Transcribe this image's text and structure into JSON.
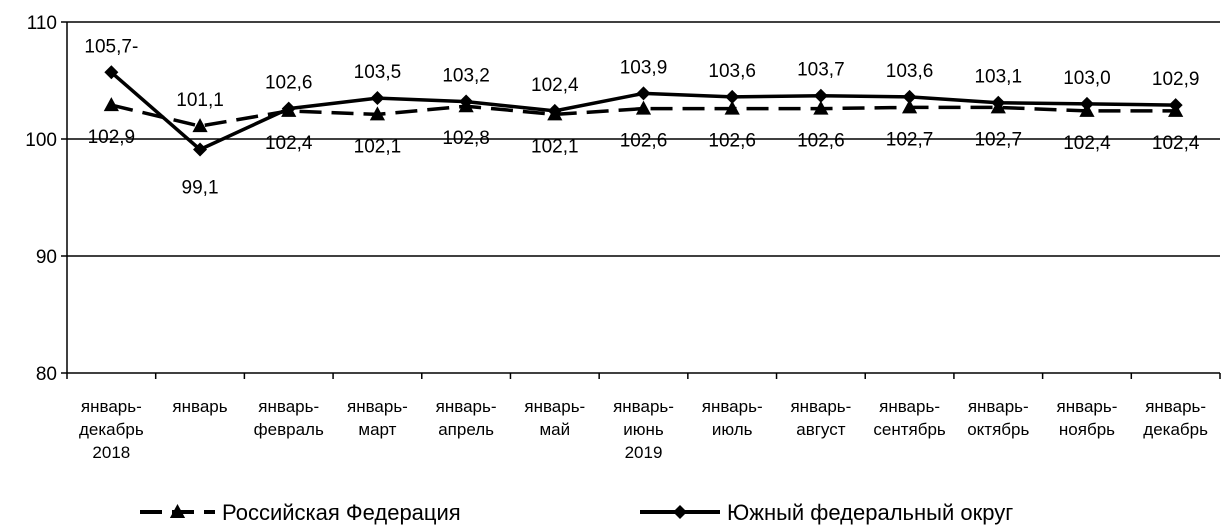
{
  "chart_data": {
    "type": "line",
    "title": "",
    "xlabel": "",
    "ylabel": "",
    "ylim": [
      80,
      110
    ],
    "yticks": [
      "80",
      "90",
      "100",
      "110"
    ],
    "grid": "horizontal",
    "legend_position": "bottom",
    "categories": [
      [
        "январь-",
        "декабрь",
        "2018"
      ],
      [
        "январь"
      ],
      [
        "январь-",
        "февраль"
      ],
      [
        "январь-",
        "март"
      ],
      [
        "январь-",
        "апрель"
      ],
      [
        "январь-",
        "май"
      ],
      [
        "январь-",
        "июнь",
        "2019"
      ],
      [
        "январь-",
        "июль"
      ],
      [
        "январь-",
        "август"
      ],
      [
        "январь-",
        "сентябрь"
      ],
      [
        "январь-",
        "октябрь"
      ],
      [
        "январь-",
        "ноябрь"
      ],
      [
        "январь-",
        "декабрь"
      ]
    ],
    "series": [
      {
        "name": "Российская Федерация",
        "style": "dashed",
        "marker": "triangle",
        "color": "#000000",
        "values": [
          102.9,
          101.1,
          102.4,
          102.1,
          102.8,
          102.1,
          102.6,
          102.6,
          102.6,
          102.7,
          102.7,
          102.4,
          102.4
        ],
        "labels": [
          "102,9",
          "101,1",
          "102,4",
          "102,1",
          "102,8",
          "102,1",
          "102,6",
          "102,6",
          "102,6",
          "102,7",
          "102,7",
          "102,4",
          "102,4"
        ]
      },
      {
        "name": "Южный федеральный округ",
        "style": "solid",
        "marker": "diamond",
        "color": "#000000",
        "values": [
          105.7,
          99.1,
          102.6,
          103.5,
          103.2,
          102.4,
          103.9,
          103.6,
          103.7,
          103.6,
          103.1,
          103.0,
          102.9
        ],
        "labels": [
          "105,7-",
          "99,1",
          "102,6",
          "103,5",
          "103,2",
          "102,4",
          "103,9",
          "103,6",
          "103,7",
          "103,6",
          "103,1",
          "103,0",
          "102,9"
        ]
      }
    ]
  }
}
